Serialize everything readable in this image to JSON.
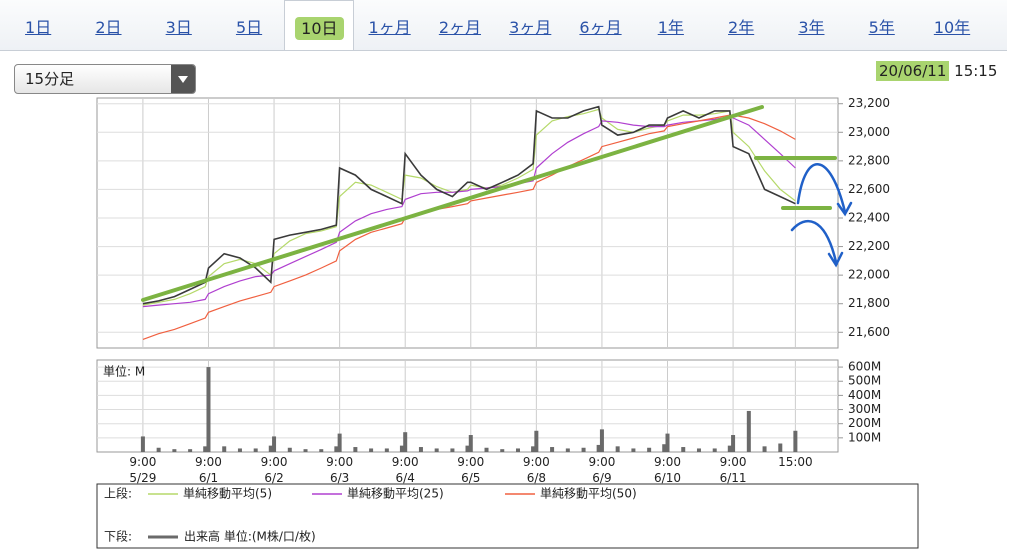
{
  "tabs": [
    "1日",
    "2日",
    "3日",
    "5日",
    "10日",
    "1ヶ月",
    "2ヶ月",
    "3ヶ月",
    "6ヶ月",
    "1年",
    "2年",
    "3年",
    "5年",
    "10年"
  ],
  "selected_tab": 4,
  "interval": "15分足",
  "date": "20/06/11",
  "time": "15:15",
  "chart_data": [
    {
      "type": "line",
      "legend_title": "上段:",
      "x": [
        0,
        0.24,
        0.48,
        0.72,
        0.95,
        1,
        1.24,
        1.48,
        1.72,
        1.95,
        2,
        2.24,
        2.48,
        2.72,
        2.95,
        3,
        3.24,
        3.48,
        3.72,
        3.95,
        4,
        4.24,
        4.48,
        4.72,
        4.95,
        5,
        5.24,
        5.48,
        5.72,
        5.95,
        6,
        6.24,
        6.48,
        6.72,
        6.95,
        7,
        7.24,
        7.48,
        7.72,
        7.95,
        8,
        8.24,
        8.48,
        8.72,
        8.95,
        9,
        9.24,
        9.48,
        9.72,
        9.95
      ],
      "values": [
        21800,
        21820,
        21850,
        21900,
        21950,
        22050,
        22150,
        22120,
        22050,
        21950,
        22250,
        22280,
        22300,
        22320,
        22350,
        22750,
        22700,
        22600,
        22550,
        22500,
        22850,
        22700,
        22600,
        22550,
        22650,
        22650,
        22600,
        22650,
        22700,
        22780,
        23150,
        23100,
        23100,
        23150,
        23180,
        23050,
        22980,
        23000,
        23050,
        23050,
        23100,
        23150,
        23100,
        23150,
        23150,
        22900,
        22850,
        22600,
        22550,
        22500
      ],
      "color": "#3a3a3a",
      "series": [
        {
          "name": "単純移動平均(5)",
          "color": "#b5d96a",
          "values": [
            21790,
            21810,
            21830,
            21870,
            21920,
            21990,
            22080,
            22110,
            22080,
            22000,
            22150,
            22240,
            22290,
            22310,
            22340,
            22550,
            22650,
            22630,
            22580,
            22530,
            22700,
            22680,
            22620,
            22580,
            22600,
            22630,
            22610,
            22630,
            22680,
            22740,
            22980,
            23080,
            23110,
            23130,
            23160,
            23100,
            23020,
            23000,
            23030,
            23050,
            23080,
            23120,
            23120,
            23130,
            23150,
            23000,
            22900,
            22730,
            22600,
            22520
          ]
        },
        {
          "name": "単純移動平均(25)",
          "color": "#b040d0",
          "values": [
            21780,
            21790,
            21800,
            21810,
            21830,
            21870,
            21920,
            21960,
            21990,
            22000,
            22030,
            22080,
            22130,
            22180,
            22230,
            22300,
            22380,
            22430,
            22460,
            22480,
            22530,
            22570,
            22580,
            22580,
            22590,
            22600,
            22610,
            22620,
            22640,
            22660,
            22750,
            22850,
            22930,
            22990,
            23040,
            23080,
            23070,
            23050,
            23040,
            23040,
            23050,
            23070,
            23080,
            23090,
            23110,
            23100,
            23050,
            22950,
            22850,
            22750
          ]
        },
        {
          "name": "単純移動平均(50)",
          "color": "#f06040",
          "values": [
            21550,
            21590,
            21620,
            21660,
            21700,
            21740,
            21780,
            21820,
            21850,
            21880,
            21920,
            21960,
            22000,
            22050,
            22100,
            22170,
            22250,
            22300,
            22330,
            22360,
            22400,
            22430,
            22460,
            22480,
            22500,
            22520,
            22540,
            22560,
            22580,
            22600,
            22650,
            22700,
            22760,
            22810,
            22860,
            22900,
            22930,
            22960,
            22990,
            23010,
            23040,
            23060,
            23080,
            23100,
            23120,
            23120,
            23100,
            23060,
            23010,
            22950
          ]
        }
      ],
      "xlim": [
        -0.7,
        10.6
      ],
      "xticks": [
        {
          "value": 0,
          "label": "9:00\n5/29"
        },
        {
          "value": 1,
          "label": "9:00\n6/1"
        },
        {
          "value": 2,
          "label": "9:00\n6/2"
        },
        {
          "value": 3,
          "label": "9:00\n6/3"
        },
        {
          "value": 4,
          "label": "9:00\n6/4"
        },
        {
          "value": 5,
          "label": "9:00\n6/5"
        },
        {
          "value": 6,
          "label": "9:00\n6/8"
        },
        {
          "value": 7,
          "label": "9:00\n6/9"
        },
        {
          "value": 8,
          "label": "9:00\n6/10"
        },
        {
          "value": 9,
          "label": "9:00\n6/11"
        },
        {
          "value": 9.95,
          "label": "15:00"
        }
      ],
      "ylim": [
        21490,
        23240
      ],
      "yticks": [
        {
          "value": 21600,
          "label": "21,600"
        },
        {
          "value": 21800,
          "label": "21,800"
        },
        {
          "value": 22000,
          "label": "22,000"
        },
        {
          "value": 22200,
          "label": "22,200"
        },
        {
          "value": 22400,
          "label": "22,400"
        },
        {
          "value": 22600,
          "label": "22,600"
        },
        {
          "value": 22800,
          "label": "22,800"
        },
        {
          "value": 23000,
          "label": "23,000"
        },
        {
          "value": 23200,
          "label": "23,200"
        }
      ],
      "grid": true
    },
    {
      "type": "bar",
      "legend_title": "下段:",
      "ylabel": "単位: M",
      "series_name": "出来高 単位:(M株/口/枚)",
      "color": "#6a6a6a",
      "values": [
        110,
        30,
        20,
        20,
        40,
        600,
        40,
        25,
        25,
        45,
        110,
        30,
        20,
        20,
        40,
        130,
        35,
        25,
        25,
        45,
        140,
        35,
        25,
        25,
        45,
        120,
        30,
        20,
        25,
        40,
        150,
        35,
        25,
        30,
        50,
        160,
        40,
        25,
        30,
        55,
        130,
        35,
        25,
        25,
        45,
        120,
        290,
        40,
        60,
        150
      ],
      "ylim": [
        0,
        650
      ],
      "yticks": [
        {
          "value": 100,
          "label": "100M"
        },
        {
          "value": 200,
          "label": "200M"
        },
        {
          "value": 300,
          "label": "300M"
        },
        {
          "value": 400,
          "label": "400M"
        },
        {
          "value": 500,
          "label": "500M"
        },
        {
          "value": 600,
          "label": "600M"
        }
      ],
      "grid": true
    }
  ]
}
